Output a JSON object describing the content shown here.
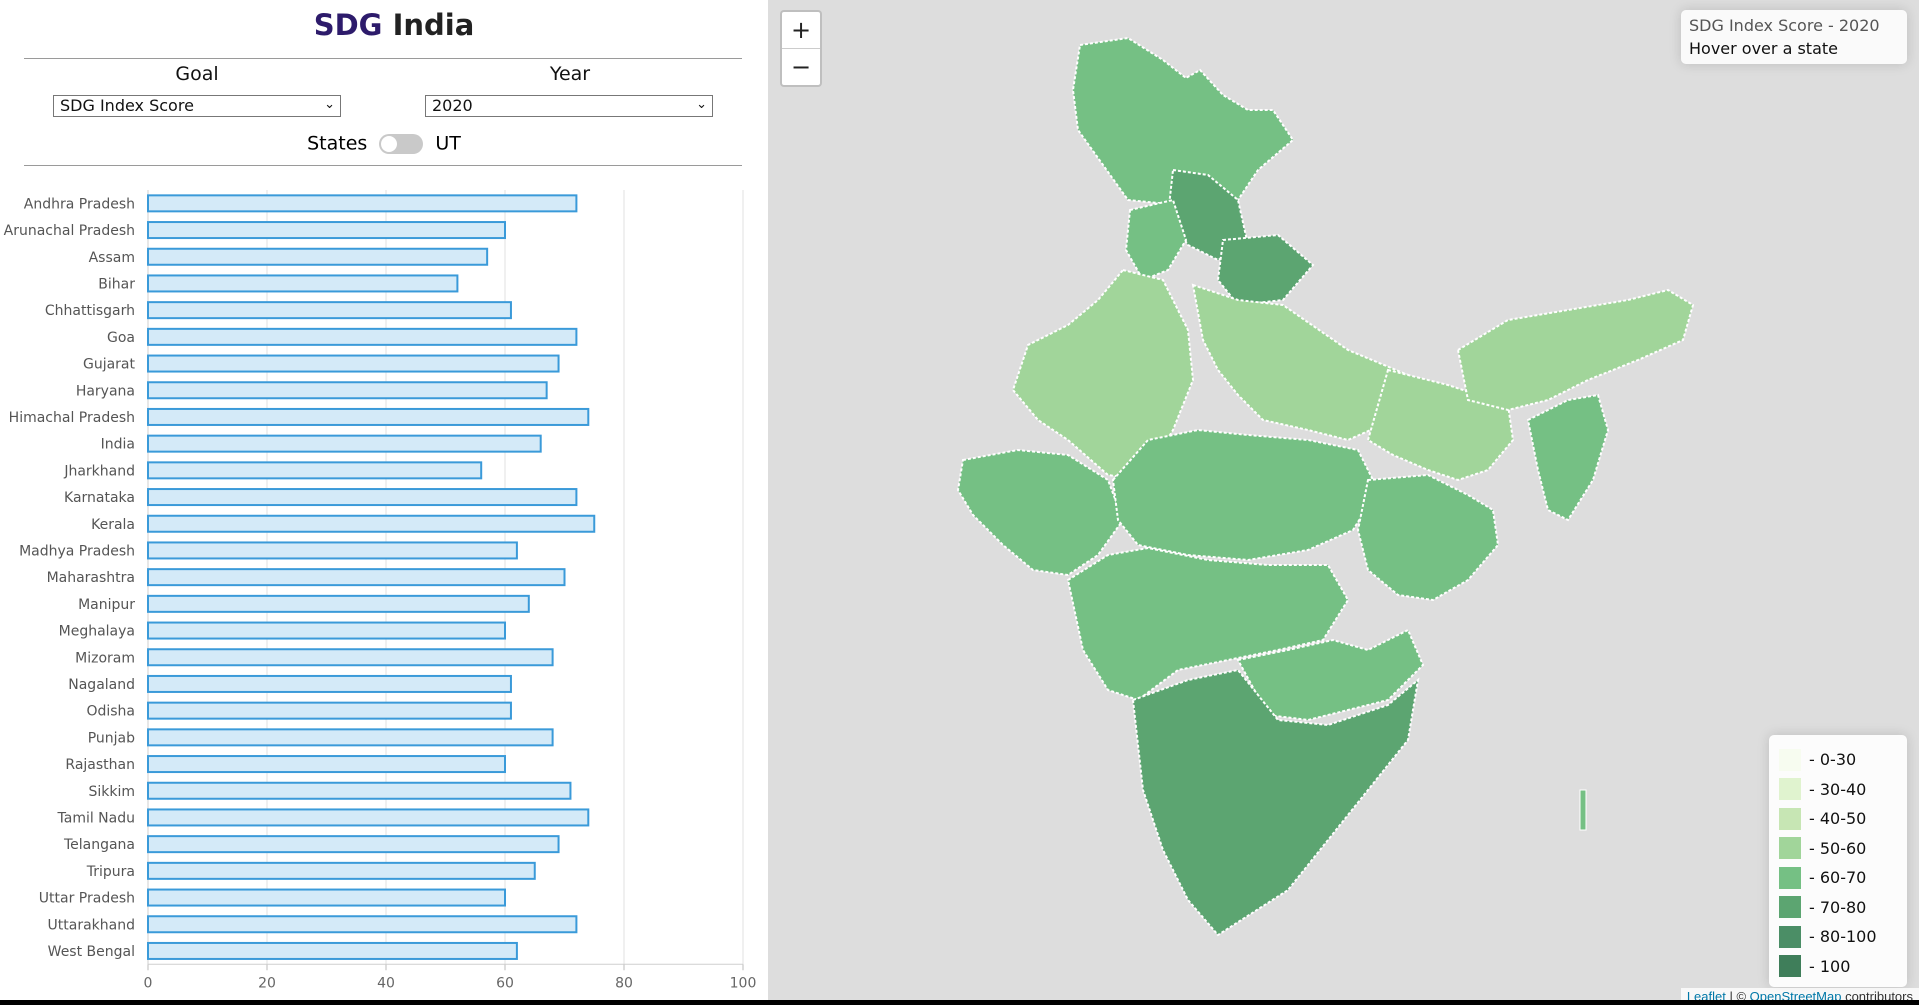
{
  "title": {
    "brand": "SDG",
    "rest": " India"
  },
  "controls": {
    "goal_label": "Goal",
    "goal_selected": "SDG Index Score",
    "year_label": "Year",
    "year_selected": "2020",
    "toggle_left": "States",
    "toggle_right": "UT",
    "toggle_on": false
  },
  "chart_data": {
    "type": "bar",
    "orientation": "horizontal",
    "categories": [
      "Andhra Pradesh",
      "Arunachal Pradesh",
      "Assam",
      "Bihar",
      "Chhattisgarh",
      "Goa",
      "Gujarat",
      "Haryana",
      "Himachal Pradesh",
      "India",
      "Jharkhand",
      "Karnataka",
      "Kerala",
      "Madhya Pradesh",
      "Maharashtra",
      "Manipur",
      "Meghalaya",
      "Mizoram",
      "Nagaland",
      "Odisha",
      "Punjab",
      "Rajasthan",
      "Sikkim",
      "Tamil Nadu",
      "Telangana",
      "Tripura",
      "Uttar Pradesh",
      "Uttarakhand",
      "West Bengal"
    ],
    "values": [
      72,
      60,
      57,
      52,
      61,
      72,
      69,
      67,
      74,
      66,
      56,
      72,
      75,
      62,
      70,
      64,
      60,
      68,
      61,
      61,
      68,
      60,
      71,
      74,
      69,
      65,
      60,
      72,
      62
    ],
    "xlim": [
      0,
      100
    ],
    "xticks": [
      0,
      20,
      40,
      60,
      80,
      100
    ],
    "grid": true,
    "bar_fill": "#d4eaf8",
    "bar_stroke": "#3a9ad9"
  },
  "map": {
    "zoom_in": "+",
    "zoom_out": "−",
    "info_title": "SDG Index Score - 2020",
    "info_hint": "Hover over a state",
    "legend": [
      {
        "label": "- 0-30",
        "color": "#f7fcf0"
      },
      {
        "label": "- 30-40",
        "color": "#e0f3cf"
      },
      {
        "label": "- 40-50",
        "color": "#c7e6b4"
      },
      {
        "label": "- 50-60",
        "color": "#a1d59a"
      },
      {
        "label": "- 60-70",
        "color": "#75c084"
      },
      {
        "label": "- 70-80",
        "color": "#5ca571"
      },
      {
        "label": "- 80-100",
        "color": "#4b8e66"
      },
      {
        "label": "- 100",
        "color": "#3f7e5a"
      }
    ],
    "attribution": {
      "leaflet": "Leaflet",
      "sep": " | © ",
      "osm": "OpenStreetMap",
      "tail": " contributors"
    }
  }
}
